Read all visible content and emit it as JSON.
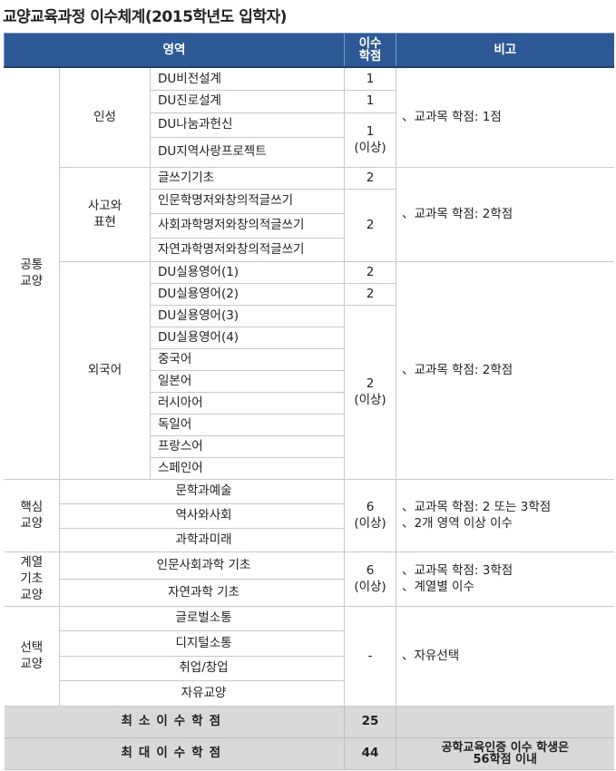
{
  "title": "교양교육과정 이수체계(2015학년도 입학자)",
  "header": {
    "area": "영역",
    "credits": "이수\n학점",
    "note": "비고"
  },
  "groups": [
    {
      "area": "공통\n교양",
      "subgroups": [
        {
          "name": "인성",
          "courses": [
            "DU비전설계",
            "DU진로설계",
            "DU나눔과헌신",
            "DU지역사랑프로젝트"
          ],
          "credits": [
            {
              "value": "1",
              "span": 1
            },
            {
              "value": "1",
              "span": 1
            },
            {
              "value": "1\n(이상)",
              "span": 2
            }
          ],
          "note": "、교과목 학점: 1점"
        },
        {
          "name": "사고와\n표현",
          "courses": [
            "글쓰기기초",
            "인문학명저와창의적글쓰기",
            "사회과학명저와창의적글쓰기",
            "자연과학명저와창의적글쓰기"
          ],
          "credits": [
            {
              "value": "2",
              "span": 1
            },
            {
              "value": "2",
              "span": 3
            }
          ],
          "note": "、교과목 학점: 2학점"
        },
        {
          "name": "외국어",
          "courses": [
            "DU실용영어(1)",
            "DU실용영어(2)",
            "DU실용영어(3)",
            "DU실용영어(4)",
            "중국어",
            "일본어",
            "러시아어",
            "독일어",
            "프랑스어",
            "스페인어"
          ],
          "credits": [
            {
              "value": "2",
              "span": 1
            },
            {
              "value": "2",
              "span": 1
            },
            {
              "value": "2\n(이상)",
              "span": 8
            }
          ],
          "note": "、교과목 학점: 2학점"
        }
      ]
    },
    {
      "area": "핵심\n교양",
      "courses": [
        "문학과예술",
        "역사와사회",
        "과학과미래"
      ],
      "credits": "6\n(이상)",
      "note": "、교과목 학점: 2 또는 3학점\n、2개 영역 이상 이수"
    },
    {
      "area": "계열\n기초\n교양",
      "courses": [
        "인문사회과학 기초",
        "자연과학 기초"
      ],
      "credits": "6\n(이상)",
      "note": "、교과목 학점: 3학점\n、계열별 이수"
    },
    {
      "area": "선택\n교양",
      "courses": [
        "글로벌소통",
        "디지털소통",
        "취업/창업",
        "자유교양"
      ],
      "credits": "-",
      "note": "、자유선택"
    }
  ],
  "footer": [
    {
      "label": "최소이수학점",
      "credits": "25",
      "note": ""
    },
    {
      "label": "최대이수학점",
      "credits": "44",
      "note": "공학교육인증 이수 학생은\n56학점 이내"
    }
  ]
}
